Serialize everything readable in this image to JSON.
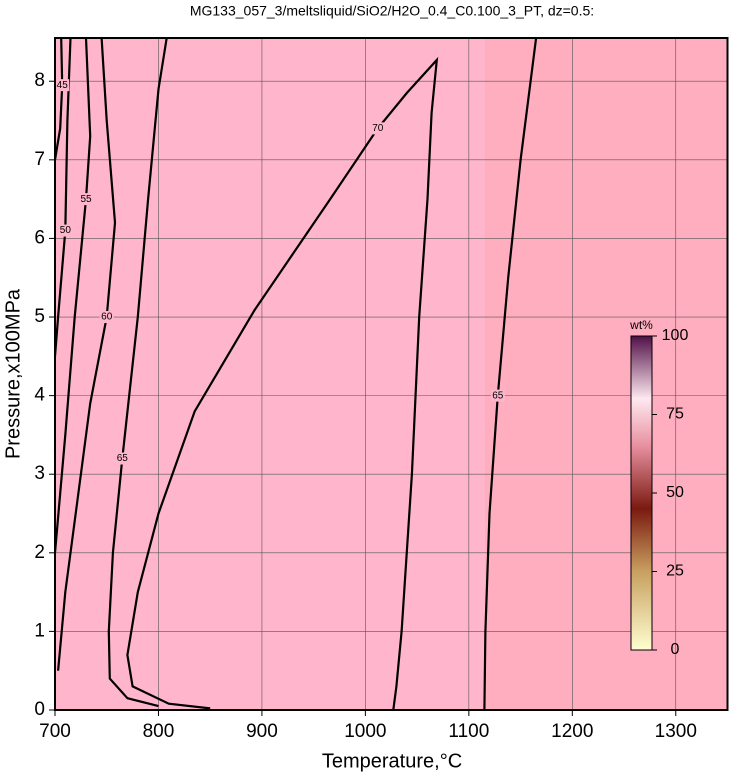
{
  "chart_data": {
    "type": "contour",
    "title": "MG133_057_3/meltsliquid/SiO2/H2O_0.4_C0.100_3_PT, dz=0.5:",
    "x_label": "Temperature,°C",
    "y_label": "Pressure,x100MPa",
    "xlim": [
      700,
      1350
    ],
    "ylim": [
      0,
      8.55
    ],
    "xticks": [
      700,
      800,
      900,
      1000,
      1100,
      1200,
      1300
    ],
    "yticks": [
      0,
      1,
      2,
      3,
      4,
      5,
      6,
      7,
      8
    ],
    "grid": true,
    "color": "#000000",
    "contours": [
      {
        "level": 70,
        "x": [
          850,
          810,
          775,
          770,
          780,
          800,
          835,
          893,
          966,
          1012,
          1040,
          1069,
          1064,
          1060,
          1052,
          1045,
          1035,
          1030,
          1027
        ],
        "y": [
          0.02,
          0.08,
          0.3,
          0.7,
          1.5,
          2.5,
          3.8,
          5.09,
          6.5,
          7.4,
          7.85,
          8.27,
          7.6,
          6.5,
          5,
          3,
          1,
          0.3,
          0
        ]
      },
      {
        "level": 65,
        "x": [
          1115,
          1116,
          1120,
          1128,
          1138,
          1150,
          1165
        ],
        "y": [
          0,
          1,
          2.5,
          4,
          5.5,
          7,
          8.55
        ]
      },
      {
        "level": 65,
        "x": [
          800,
          770,
          753,
          752,
          756,
          765,
          780,
          790,
          800,
          808
        ],
        "y": [
          0.05,
          0.15,
          0.4,
          1,
          2,
          3.2,
          5,
          6.5,
          7.9,
          8.55
        ]
      },
      {
        "level": 60,
        "x": [
          703,
          710,
          720,
          734,
          750,
          758,
          750,
          745
        ],
        "y": [
          0.5,
          1.5,
          2.5,
          3.9,
          5,
          6.2,
          7.5,
          8.55
        ]
      },
      {
        "level": 55,
        "x": [
          700,
          710,
          719,
          730,
          734,
          730
        ],
        "y": [
          2,
          3.5,
          5,
          6.5,
          7.3,
          8.55
        ]
      },
      {
        "level": 50,
        "x": [
          700,
          703,
          710,
          712,
          715
        ],
        "y": [
          4.5,
          5,
          6.1,
          7.5,
          8.55
        ]
      },
      {
        "level": 45,
        "x": [
          700,
          705,
          707,
          706
        ],
        "y": [
          7,
          7.4,
          7.95,
          8.55
        ]
      }
    ],
    "colorbar": {
      "label": "wt%",
      "lim": [
        0,
        100
      ],
      "ticks": [
        0,
        25,
        50,
        75,
        100
      ]
    }
  }
}
